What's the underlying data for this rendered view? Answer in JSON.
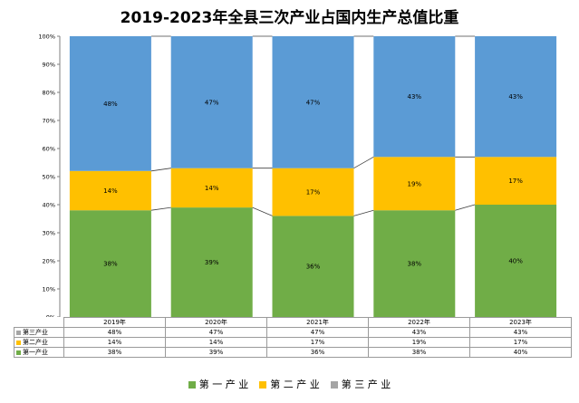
{
  "chart_data": {
    "type": "bar",
    "stacked": true,
    "title": "2019-2023年全县三次产业占国内生产总值比重",
    "categories": [
      "2019年",
      "2020年",
      "2021年",
      "2022年",
      "2023年"
    ],
    "series": [
      {
        "name": "第一产业",
        "color": "#70ad47",
        "values": [
          38,
          39,
          36,
          38,
          40
        ],
        "labels": [
          "38%",
          "39%",
          "36%",
          "38%",
          "40%"
        ]
      },
      {
        "name": "第二产业",
        "color": "#ffc000",
        "values": [
          14,
          14,
          17,
          19,
          17
        ],
        "labels": [
          "14%",
          "14%",
          "17%",
          "19%",
          "17%"
        ]
      },
      {
        "name": "第三产业",
        "color": "#5b9bd5",
        "values": [
          48,
          47,
          47,
          43,
          43
        ],
        "labels": [
          "48%",
          "47%",
          "47%",
          "43%",
          "43%"
        ]
      }
    ],
    "ylim": [
      0,
      100
    ],
    "yticks": [
      "0%",
      "10%",
      "20%",
      "30%",
      "40%",
      "50%",
      "60%",
      "70%",
      "80%",
      "90%",
      "100%"
    ],
    "series_lines": true,
    "data_table": true,
    "legend_position": "bottom",
    "legend": [
      {
        "name": "第一产业",
        "color": "#70ad47"
      },
      {
        "name": "第二产业",
        "color": "#ffc000"
      },
      {
        "name": "第三产业",
        "color": "#a5a5a5"
      }
    ],
    "table_rows": [
      {
        "name": "第三产业",
        "color": "#a5a5a5",
        "cells": [
          "48%",
          "47%",
          "47%",
          "43%",
          "43%"
        ]
      },
      {
        "name": "第二产业",
        "color": "#ffc000",
        "cells": [
          "14%",
          "14%",
          "17%",
          "19%",
          "17%"
        ]
      },
      {
        "name": "第一产业",
        "color": "#70ad47",
        "cells": [
          "38%",
          "39%",
          "36%",
          "38%",
          "40%"
        ]
      }
    ]
  }
}
